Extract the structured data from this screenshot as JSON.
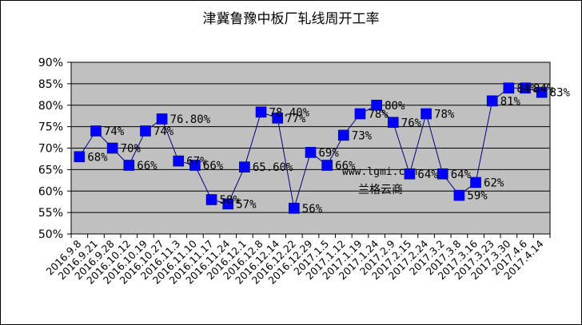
{
  "chart_data": {
    "type": "line",
    "title": "津冀鲁豫中板厂轧线周开工率",
    "categories": [
      "2016.9.8",
      "2016.9.21",
      "2016.9.28",
      "2016.10.12",
      "2016.10.19",
      "2016.10.27",
      "2016.11.3",
      "2016.11.10",
      "2016.11.17",
      "2016.11.24",
      "2016.12.1",
      "2016.12.8",
      "2016.12.14",
      "2016.12.22",
      "2016.12.29",
      "2017.1.5",
      "2017.1.12",
      "2017.1.19",
      "2017.1.24",
      "2017.2.9",
      "2017.2.15",
      "2017.2.24",
      "2017.3.2",
      "2017.3.8",
      "2017.3.16",
      "2017.3.23",
      "2017.3.30",
      "2017.4.6",
      "2017.4.14"
    ],
    "series": [
      {
        "values": [
          68,
          74,
          70,
          66,
          74,
          76.8,
          67,
          66,
          58,
          57,
          65.6,
          78.4,
          77,
          56,
          69,
          66,
          73,
          78,
          80,
          76,
          64,
          78,
          64,
          59,
          62,
          81,
          84,
          84,
          83
        ],
        "labels": [
          "68%",
          "74%",
          "70%",
          "66%",
          "74%",
          "76.80%",
          "67%",
          "66%",
          "58%",
          "57%",
          "65.60%",
          "78.40%",
          "77%",
          "56%",
          "69%",
          "66%",
          "73%",
          "78%",
          "80%",
          "76%",
          "64%",
          "78%",
          "64%",
          "59%",
          "62%",
          "81%",
          "84%",
          "84%",
          "83%"
        ]
      }
    ],
    "y_ticks": [
      "50%",
      "55%",
      "60%",
      "65%",
      "70%",
      "75%",
      "80%",
      "85%",
      "90%"
    ],
    "ylim": [
      50,
      90
    ],
    "grid": true,
    "colors": {
      "plot_bg": "#c0c0c0",
      "line": "#000080",
      "marker": "#0000ff"
    },
    "watermark": {
      "url": "www.lgmi.com",
      "name": "兰格云商"
    }
  }
}
